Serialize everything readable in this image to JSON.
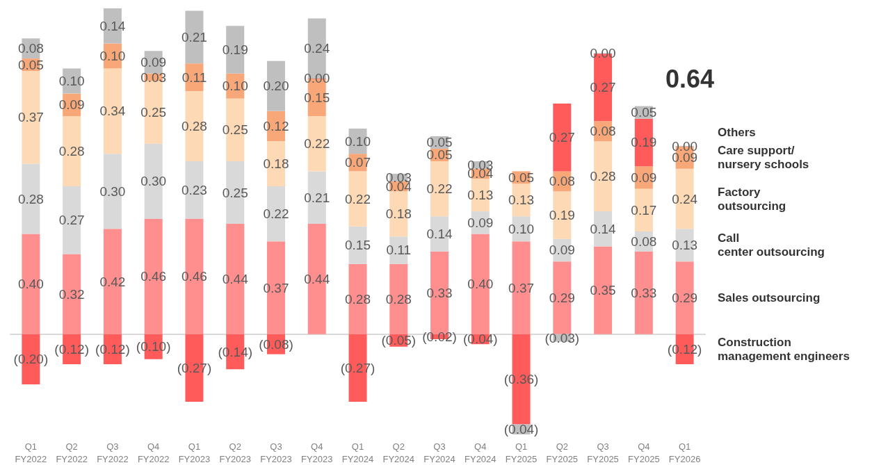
{
  "chart_data": {
    "type": "bar",
    "stacked": true,
    "legend": "right",
    "annotations": [
      "0.64"
    ],
    "categories": [
      "Q1 FY2022",
      "Q2 FY2022",
      "Q3 FY2022",
      "Q4 FY2022",
      "Q1 FY2023",
      "Q2 FY2023",
      "Q3 FY2023",
      "Q4 FY2023",
      "Q1 FY2024",
      "Q2 FY2024",
      "Q3 FY2024",
      "Q4 FY2024",
      "Q1 FY2025",
      "Q2 FY2025",
      "Q3 FY2025",
      "Q4 FY2025",
      "Q1 FY2026"
    ],
    "series": [
      {
        "name": "Sales outsourcing",
        "color": "#ff8f8f",
        "values": [
          0.4,
          0.32,
          0.42,
          0.46,
          0.46,
          0.44,
          0.37,
          0.44,
          0.28,
          0.28,
          0.33,
          0.4,
          0.37,
          0.29,
          0.35,
          0.33,
          0.29
        ],
        "value_labels": [
          "0.40",
          "0.32",
          "0.42",
          "0.46",
          "0.46",
          "0.44",
          "0.37",
          "0.44",
          "0.28",
          "0.28",
          "0.33",
          "0.40",
          "0.37",
          "0.29",
          "0.35",
          "0.33",
          "0.29"
        ]
      },
      {
        "name": "Call center outsourcing",
        "color": "#d9d9d9",
        "values": [
          0.28,
          0.27,
          0.3,
          0.3,
          0.23,
          0.25,
          0.22,
          0.21,
          0.15,
          0.11,
          0.14,
          0.09,
          0.1,
          0.09,
          0.14,
          0.08,
          0.13
        ],
        "value_labels": [
          "0.28",
          "0.27",
          "0.30",
          "0.30",
          "0.23",
          "0.25",
          "0.22",
          "0.21",
          "0.15",
          "0.11",
          "0.14",
          "0.09",
          "0.10",
          "0.09",
          "0.14",
          "0.08",
          "0.13"
        ]
      },
      {
        "name": "Factory outsourcing",
        "color": "#fdd9b5",
        "values": [
          0.37,
          0.28,
          0.34,
          0.25,
          0.28,
          0.25,
          0.18,
          0.22,
          0.22,
          0.18,
          0.22,
          0.13,
          0.13,
          0.19,
          0.28,
          0.17,
          0.24
        ],
        "value_labels": [
          "0.37",
          "0.28",
          "0.34",
          "0.25",
          "0.28",
          "0.25",
          "0.18",
          "0.22",
          "0.22",
          "0.18",
          "0.22",
          "0.13",
          "0.13",
          "0.19",
          "0.28",
          "0.17",
          "0.24"
        ]
      },
      {
        "name": "Care support/ nursery schools",
        "color": "#f8a878",
        "values": [
          0.05,
          0.09,
          0.1,
          0.03,
          0.11,
          0.1,
          0.12,
          0.15,
          0.07,
          0.04,
          0.05,
          0.04,
          0.05,
          0.08,
          0.08,
          0.09,
          0.09
        ],
        "value_labels": [
          "0.05",
          "0.09",
          "0.10",
          "0.03",
          "0.11",
          "0.10",
          "0.12",
          "0.15",
          "0.07",
          "0.04",
          "0.05",
          "0.04",
          "0.05",
          "0.08",
          "0.08",
          "0.09",
          "0.09"
        ]
      },
      {
        "name": "Construction management engineers",
        "color": "#ff5b5b",
        "values": [
          -0.2,
          -0.12,
          -0.12,
          -0.1,
          -0.27,
          -0.14,
          -0.08,
          0.0,
          -0.27,
          -0.05,
          -0.02,
          -0.04,
          -0.36,
          0.27,
          0.27,
          0.19,
          -0.12
        ],
        "value_labels": [
          "(0.20)",
          "(0.12)",
          "(0.12)",
          "(0.10)",
          "(0.27)",
          "(0.14)",
          "(0.08)",
          "0.00",
          "(0.27)",
          "(0.05)",
          "(0.02)",
          "(0.04)",
          "(0.36)",
          "0.27",
          "0.27",
          "0.19",
          "(0.12)"
        ]
      },
      {
        "name": "Others",
        "color": "#bfbfbf",
        "values": [
          0.08,
          0.1,
          0.14,
          0.09,
          0.21,
          0.19,
          0.2,
          0.24,
          0.1,
          0.03,
          0.05,
          0.03,
          -0.04,
          -0.03,
          0.0,
          0.05,
          0.0
        ],
        "value_labels": [
          "0.08",
          "0.10",
          "0.14",
          "0.09",
          "0.21",
          "0.19",
          "0.20",
          "0.24",
          "0.10",
          "0.03",
          "0.05",
          "0.03",
          "(0.04)",
          "(0.03)",
          "0.00",
          "0.05",
          "0.00"
        ]
      }
    ]
  }
}
